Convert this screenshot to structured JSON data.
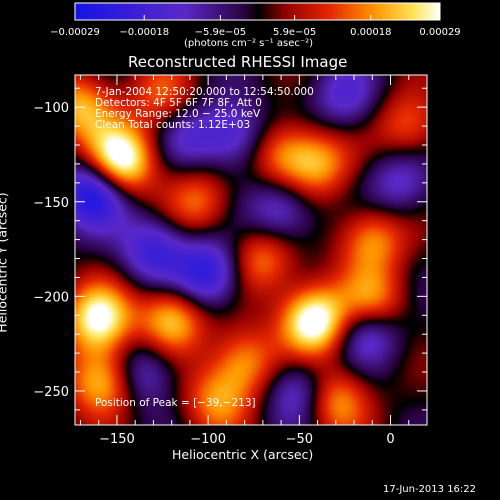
{
  "chart_data": {
    "type": "heatmap",
    "title": "Reconstructed RHESSI Image",
    "xlabel": "Heliocentric X (arcsec)",
    "ylabel": "Heliocentric Y (arcsec)",
    "xlim": [
      -173,
      20
    ],
    "ylim": [
      -268,
      -83
    ],
    "xticks": [
      -150,
      -100,
      -50,
      0
    ],
    "xtick_labels": [
      "−150",
      "−100",
      "−50",
      "0"
    ],
    "yticks": [
      -250,
      -200,
      -150,
      -100
    ],
    "ytick_labels": [
      "−250",
      "−200",
      "−150",
      "−100"
    ],
    "colorbar": {
      "range": [
        -0.00029,
        0.00029
      ],
      "tick_values": [
        -0.00029,
        -0.00018,
        -5.9e-05,
        5.9e-05,
        0.00018,
        0.00029
      ],
      "tick_labels": [
        "−0.00029",
        "−0.00018",
        "−5.9e−05",
        "5.9e−05",
        "0.00018",
        "0.00029"
      ],
      "unit": "(photons cm⁻² s⁻¹ asec⁻²)"
    },
    "sources": [
      {
        "x": -148,
        "y": -128,
        "strength": 1.0
      },
      {
        "x": -42,
        "y": -213,
        "strength": 1.0
      },
      {
        "x": -160,
        "y": -212,
        "strength": 0.85
      },
      {
        "x": -158,
        "y": -245,
        "strength": 0.7
      },
      {
        "x": -120,
        "y": -212,
        "strength": 0.7
      },
      {
        "x": -40,
        "y": -130,
        "strength": 0.55
      },
      {
        "x": -60,
        "y": -125,
        "strength": 0.5
      },
      {
        "x": -10,
        "y": -205,
        "strength": 0.75
      },
      {
        "x": -10,
        "y": -170,
        "strength": 0.55
      },
      {
        "x": -30,
        "y": -255,
        "strength": 0.6
      },
      {
        "x": -95,
        "y": -255,
        "strength": 0.5
      },
      {
        "x": -70,
        "y": -180,
        "strength": 0.5
      },
      {
        "x": -105,
        "y": -150,
        "strength": 0.45
      },
      {
        "x": -80,
        "y": -235,
        "strength": 0.55
      },
      {
        "x": 10,
        "y": -110,
        "strength": 0.45
      },
      {
        "x": -125,
        "y": -95,
        "strength": 0.4
      },
      {
        "x": -170,
        "y": -100,
        "strength": 0.6
      },
      {
        "x": -163,
        "y": -145,
        "strength": -0.8
      },
      {
        "x": -100,
        "y": -188,
        "strength": -0.7
      },
      {
        "x": -12,
        "y": -216,
        "strength": -0.7
      },
      {
        "x": -85,
        "y": -115,
        "strength": -0.5
      },
      {
        "x": -130,
        "y": -175,
        "strength": -0.55
      },
      {
        "x": -60,
        "y": -155,
        "strength": -0.5
      },
      {
        "x": -50,
        "y": -250,
        "strength": -0.5
      },
      {
        "x": 5,
        "y": -140,
        "strength": -0.4
      },
      {
        "x": -135,
        "y": -240,
        "strength": -0.45
      },
      {
        "x": -110,
        "y": -115,
        "strength": -0.35
      },
      {
        "x": -25,
        "y": -95,
        "strength": -0.4
      }
    ],
    "peak": [
      -39,
      -213
    ]
  },
  "info": {
    "line1": "7‑Jan‑2004 12:50:20.000 to 12:54:50.000",
    "line2": "Detectors: 4F 5F 6F 7F 8F, Att 0",
    "line3": "Energy Range: 12.0 − 25.0 keV",
    "line4": "Clean     Total counts: 1.12E+03",
    "peak_label": "Position of Peak = [−39,−213]"
  },
  "footer": {
    "timestamp": "17‑Jun‑2013 16:22"
  }
}
